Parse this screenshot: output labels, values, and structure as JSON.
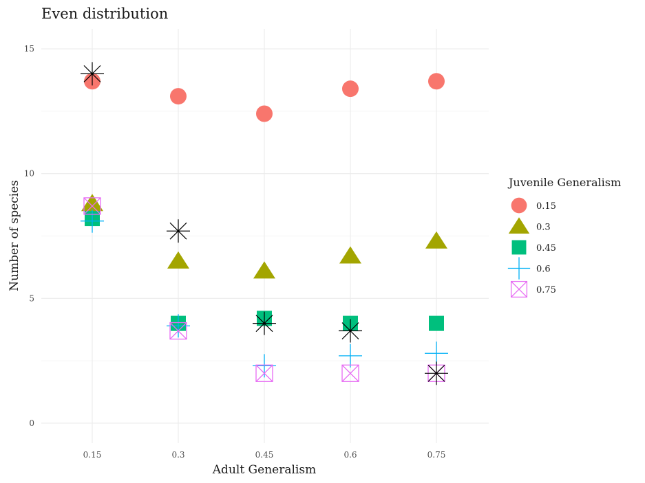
{
  "chart_data": {
    "type": "scatter",
    "title": "Even distribution",
    "xlabel": "Adult Generalism",
    "ylabel": "Number of species",
    "categories": [
      "0.15",
      "0.3",
      "0.45",
      "0.6",
      "0.75"
    ],
    "yticks": [
      0,
      5,
      10,
      15
    ],
    "ylim": [
      -0.8,
      15.8
    ],
    "grid": true,
    "legend": {
      "title": "Juvenile Generalism",
      "position": "right"
    },
    "series": [
      {
        "name": "0.15",
        "shape": "circle",
        "color": "#F8766D",
        "values": [
          13.7,
          13.1,
          12.4,
          13.4,
          13.7
        ]
      },
      {
        "name": "0.3",
        "shape": "triangle",
        "color": "#A3A500",
        "values": [
          8.8,
          6.5,
          6.1,
          6.7,
          7.3
        ]
      },
      {
        "name": "0.45",
        "shape": "square",
        "color": "#00BF7D",
        "values": [
          8.2,
          4.0,
          4.2,
          4.0,
          4.0
        ]
      },
      {
        "name": "0.6",
        "shape": "plus",
        "color": "#00B0F6",
        "values": [
          8.1,
          3.9,
          2.3,
          2.7,
          2.8
        ]
      },
      {
        "name": "0.75",
        "shape": "square-x",
        "color": "#E76BF3",
        "values": [
          8.7,
          3.7,
          2.0,
          2.0,
          2.0
        ]
      }
    ],
    "extra_points": {
      "shape": "asterisk",
      "color": "#000000",
      "values": [
        14.0,
        7.7,
        4.0,
        3.7,
        2.0
      ]
    }
  }
}
